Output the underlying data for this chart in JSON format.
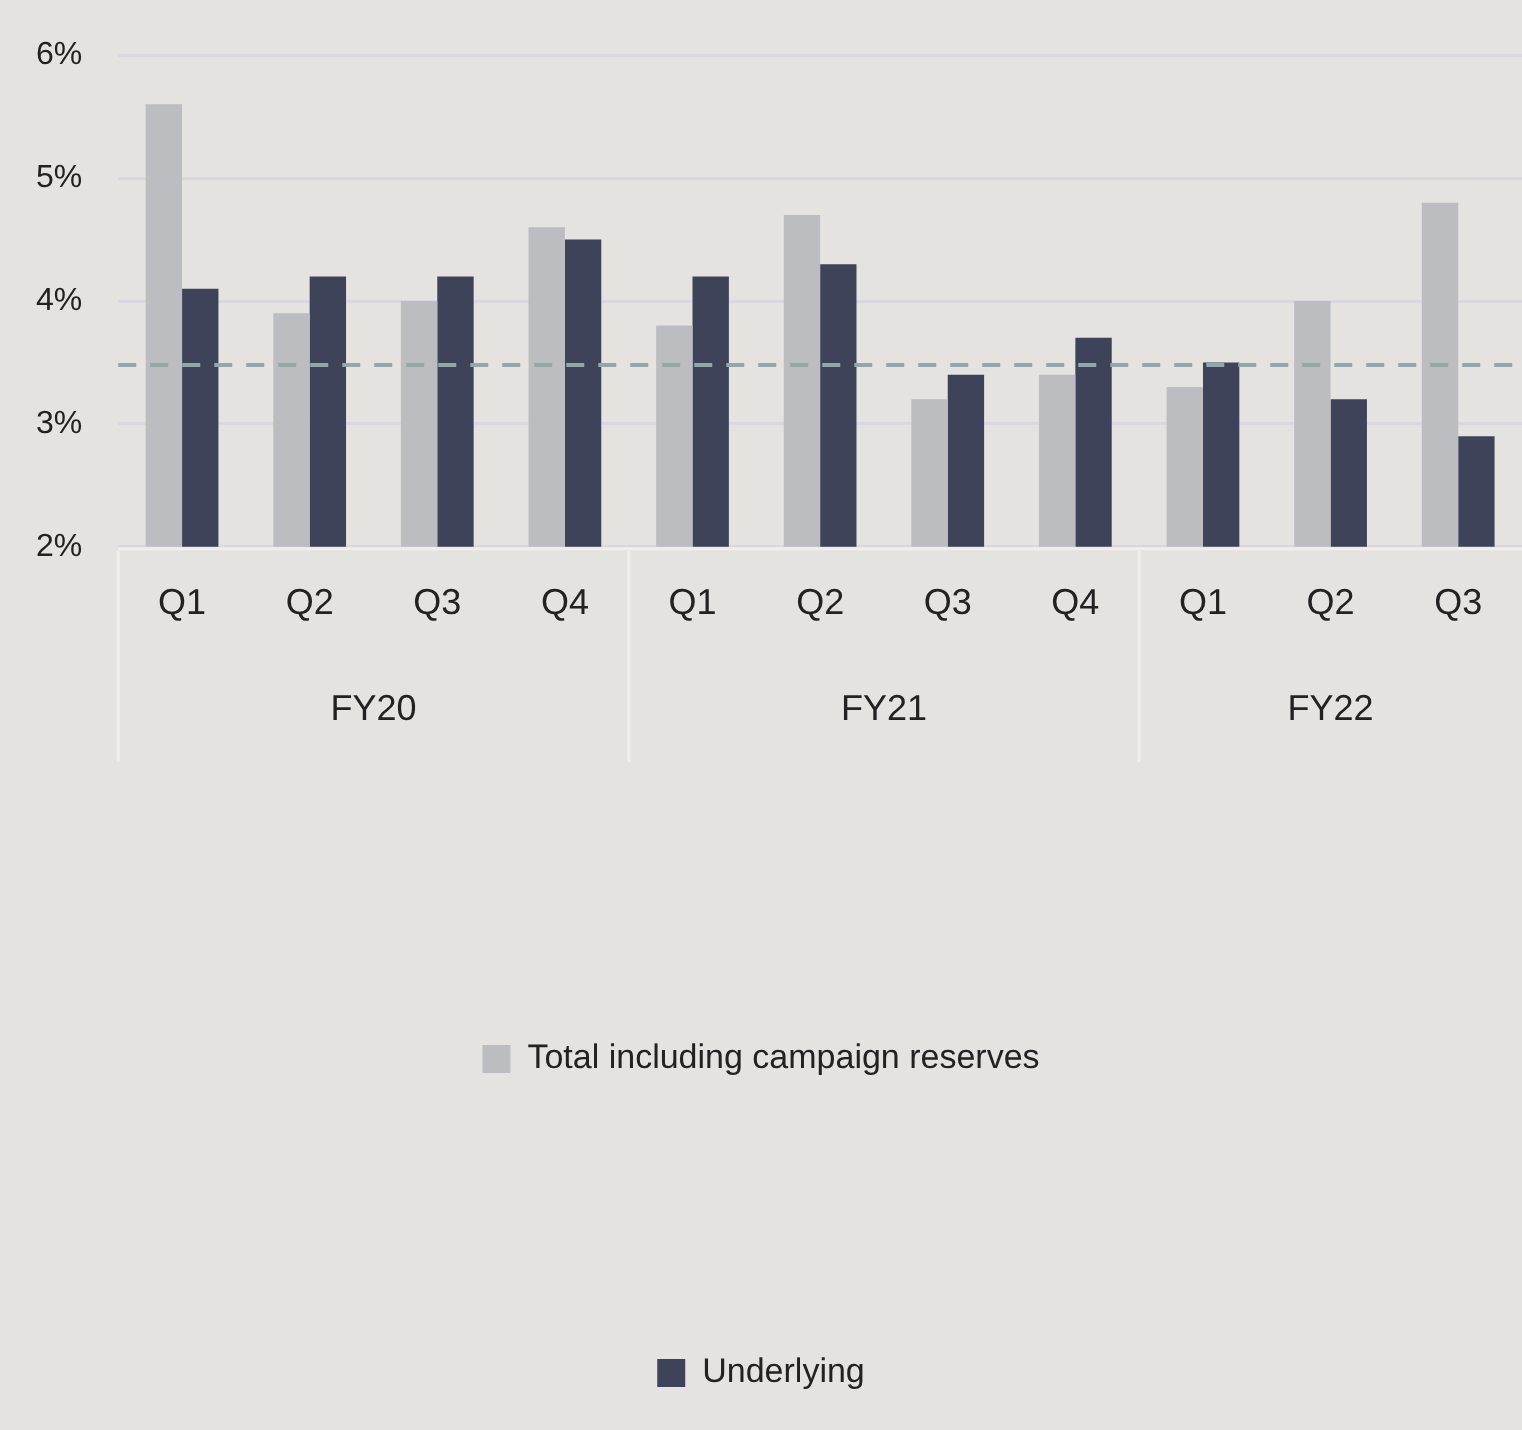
{
  "chart_data": {
    "type": "bar",
    "categories": [
      "Q1",
      "Q2",
      "Q3",
      "Q4",
      "Q1",
      "Q2",
      "Q3",
      "Q4",
      "Q1",
      "Q2",
      "Q3"
    ],
    "series": [
      {
        "name": "Total including campaign reserves",
        "color": "#bcbdc1",
        "values": [
          5.6,
          3.9,
          4.0,
          4.6,
          3.8,
          4.7,
          3.2,
          3.4,
          3.3,
          4.0,
          4.8
        ]
      },
      {
        "name": "Underlying",
        "color": "#3e4359",
        "values": [
          4.1,
          4.2,
          4.2,
          4.5,
          4.2,
          4.3,
          3.4,
          3.7,
          3.5,
          3.2,
          2.9
        ]
      }
    ],
    "ylim": [
      2,
      6
    ],
    "yticks": [
      {
        "value": 2,
        "label": "2%"
      },
      {
        "value": 3,
        "label": "3%"
      },
      {
        "value": 4,
        "label": "4%"
      },
      {
        "value": 5,
        "label": "5%"
      },
      {
        "value": 6,
        "label": "6%"
      }
    ],
    "ref_lines": [
      {
        "axis": "y",
        "value": 3.48,
        "label": null,
        "color": "#8fa9a8",
        "line_style": "dashed"
      }
    ],
    "annotations": [
      "FY20",
      "FY21",
      "FY22"
    ],
    "grid": "y",
    "legend": "bottom"
  }
}
